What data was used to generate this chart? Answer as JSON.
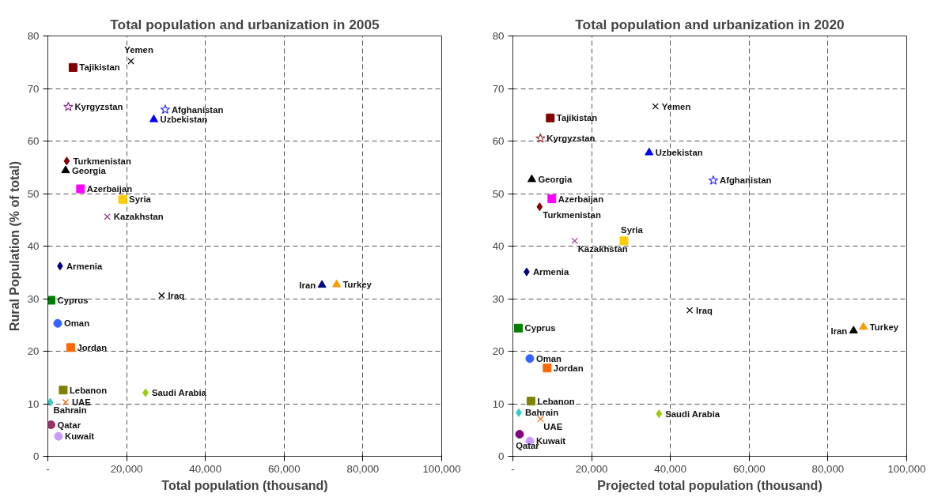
{
  "chart_data": [
    {
      "type": "scatter",
      "title": "Total population and urbanization in 2005",
      "xlabel": "Total population (thousand)",
      "ylabel": "Rural Population (% of total)",
      "xlim": [
        0,
        100000
      ],
      "ylim": [
        0,
        80
      ],
      "xticks": [
        {
          "value": 0,
          "label": "-"
        },
        {
          "value": 20000,
          "label": "20,000"
        },
        {
          "value": 40000,
          "label": "40,000"
        },
        {
          "value": 60000,
          "label": "60,000"
        },
        {
          "value": 80000,
          "label": "80,000"
        },
        {
          "value": 100000,
          "label": "100,000"
        }
      ],
      "yticks": [
        0,
        10,
        20,
        30,
        40,
        50,
        60,
        70,
        80
      ],
      "grid": true,
      "legend": false,
      "series": [
        {
          "name": "Tajikistan",
          "color": "#800000",
          "marker": "square",
          "x": [
            6400
          ],
          "values": [
            74.0
          ]
        },
        {
          "name": "Yemen",
          "color": "#000000",
          "marker": "cross",
          "x": [
            21100
          ],
          "values": [
            75.2
          ]
        },
        {
          "name": "Kyrgyzstan",
          "color": "#993399",
          "marker": "star",
          "x": [
            5200
          ],
          "values": [
            66.5
          ]
        },
        {
          "name": "Afghanistan",
          "color": "#3333ff",
          "marker": "star",
          "x": [
            29800
          ],
          "values": [
            66.0
          ]
        },
        {
          "name": "Uzbekistan",
          "color": "#0000ff",
          "marker": "triangle",
          "x": [
            26900
          ],
          "values": [
            64.1
          ]
        },
        {
          "name": "Turkmenistan",
          "color": "#800000",
          "marker": "diamond",
          "x": [
            4800
          ],
          "values": [
            56.2
          ]
        },
        {
          "name": "Georgia",
          "color": "#000000",
          "marker": "triangle",
          "x": [
            4500
          ],
          "values": [
            54.4
          ]
        },
        {
          "name": "Azerbaijan",
          "color": "#ff00ff",
          "marker": "square",
          "x": [
            8300
          ],
          "values": [
            50.9
          ]
        },
        {
          "name": "Syria",
          "color": "#ffcc00",
          "marker": "square",
          "x": [
            19000
          ],
          "values": [
            48.9
          ]
        },
        {
          "name": "Kazakhstan",
          "color": "#993399",
          "marker": "cross",
          "x": [
            15100
          ],
          "values": [
            45.6
          ]
        },
        {
          "name": "Armenia",
          "color": "#000080",
          "marker": "diamond",
          "x": [
            3100
          ],
          "values": [
            36.2
          ]
        },
        {
          "name": "Cyprus",
          "color": "#008000",
          "marker": "square",
          "x": [
            800
          ],
          "values": [
            29.7
          ]
        },
        {
          "name": "Iraq",
          "color": "#000000",
          "marker": "cross",
          "x": [
            28900
          ],
          "values": [
            30.6
          ]
        },
        {
          "name": "Iran",
          "color": "#000080",
          "marker": "triangle",
          "x": [
            69600
          ],
          "values": [
            32.6
          ]
        },
        {
          "name": "Turkey",
          "color": "#ff9900",
          "marker": "triangle",
          "x": [
            73300
          ],
          "values": [
            32.7
          ]
        },
        {
          "name": "Oman",
          "color": "#3366ff",
          "marker": "circle",
          "x": [
            2500
          ],
          "values": [
            25.3
          ]
        },
        {
          "name": "Jordan",
          "color": "#ff6600",
          "marker": "square",
          "x": [
            5800
          ],
          "values": [
            20.7
          ]
        },
        {
          "name": "Lebanon",
          "color": "#808000",
          "marker": "square",
          "x": [
            3900
          ],
          "values": [
            12.6
          ]
        },
        {
          "name": "Saudi Arabia",
          "color": "#99cc00",
          "marker": "diamond",
          "x": [
            24800
          ],
          "values": [
            12.1
          ]
        },
        {
          "name": "Bahrain",
          "color": "#33cccc",
          "marker": "diamond",
          "x": [
            600
          ],
          "values": [
            10.3
          ]
        },
        {
          "name": "UAE",
          "color": "#ff6600",
          "marker": "cross",
          "x": [
            4500
          ],
          "values": [
            10.3
          ]
        },
        {
          "name": "Qatar",
          "color": "#993366",
          "marker": "circle",
          "x": [
            800
          ],
          "values": [
            6.0
          ]
        },
        {
          "name": "Kuwait",
          "color": "#cc99ff",
          "marker": "circle",
          "x": [
            2700
          ],
          "values": [
            3.8
          ]
        }
      ]
    },
    {
      "type": "scatter",
      "title": "Total population and urbanization in 2020",
      "xlabel": "Projected total population (thousand)",
      "xlim": [
        0,
        100000
      ],
      "ylim": [
        0,
        80
      ],
      "xticks": [
        {
          "value": 0,
          "label": "-"
        },
        {
          "value": 20000,
          "label": "20,000"
        },
        {
          "value": 40000,
          "label": "40,000"
        },
        {
          "value": 60000,
          "label": "60,000"
        },
        {
          "value": 80000,
          "label": "80,000"
        },
        {
          "value": 100000,
          "label": "100,000"
        }
      ],
      "yticks": [
        0,
        10,
        20,
        30,
        40,
        50,
        60,
        70,
        80
      ],
      "grid": true,
      "legend": false,
      "series": [
        {
          "name": "Tajikistan",
          "color": "#800000",
          "marker": "square",
          "x": [
            9500
          ],
          "values": [
            64.4
          ]
        },
        {
          "name": "Yemen",
          "color": "#000000",
          "marker": "cross",
          "x": [
            36200
          ],
          "values": [
            66.6
          ]
        },
        {
          "name": "Kyrgyzstan",
          "color": "#993333",
          "marker": "star",
          "x": [
            7000
          ],
          "values": [
            60.5
          ]
        },
        {
          "name": "Uzbekistan",
          "color": "#0000ff",
          "marker": "triangle",
          "x": [
            34600
          ],
          "values": [
            57.8
          ]
        },
        {
          "name": "Georgia",
          "color": "#000000",
          "marker": "triangle",
          "x": [
            4800
          ],
          "values": [
            52.7
          ]
        },
        {
          "name": "Afghanistan",
          "color": "#3333ff",
          "marker": "star",
          "x": [
            50900
          ],
          "values": [
            52.5
          ]
        },
        {
          "name": "Azerbaijan",
          "color": "#ff00ff",
          "marker": "square",
          "x": [
            9900
          ],
          "values": [
            49.0
          ]
        },
        {
          "name": "Turkmenistan",
          "color": "#800000",
          "marker": "diamond",
          "x": [
            6800
          ],
          "values": [
            47.5
          ]
        },
        {
          "name": "Kazakhstan",
          "color": "#993399",
          "marker": "cross",
          "x": [
            15700
          ],
          "values": [
            41.0
          ]
        },
        {
          "name": "Syria",
          "color": "#ffcc00",
          "marker": "square",
          "x": [
            28200
          ],
          "values": [
            41.0
          ]
        },
        {
          "name": "Armenia",
          "color": "#000080",
          "marker": "diamond",
          "x": [
            3500
          ],
          "values": [
            35.1
          ]
        },
        {
          "name": "Iraq",
          "color": "#000000",
          "marker": "cross",
          "x": [
            44900
          ],
          "values": [
            27.8
          ]
        },
        {
          "name": "Iran",
          "color": "#000000",
          "marker": "triangle",
          "x": [
            86500
          ],
          "values": [
            23.9
          ]
        },
        {
          "name": "Turkey",
          "color": "#ff9900",
          "marker": "triangle",
          "x": [
            89000
          ],
          "values": [
            24.6
          ]
        },
        {
          "name": "Cyprus",
          "color": "#008000",
          "marker": "square",
          "x": [
            1400
          ],
          "values": [
            24.4
          ]
        },
        {
          "name": "Oman",
          "color": "#3366ff",
          "marker": "circle",
          "x": [
            4300
          ],
          "values": [
            18.6
          ]
        },
        {
          "name": "Jordan",
          "color": "#ff6600",
          "marker": "square",
          "x": [
            8700
          ],
          "values": [
            16.8
          ]
        },
        {
          "name": "Lebanon",
          "color": "#808000",
          "marker": "square",
          "x": [
            4600
          ],
          "values": [
            10.5
          ]
        },
        {
          "name": "Bahrain",
          "color": "#33cccc",
          "marker": "diamond",
          "x": [
            1500
          ],
          "values": [
            8.3
          ]
        },
        {
          "name": "UAE",
          "color": "#ff6600",
          "marker": "cross",
          "x": [
            7000
          ],
          "values": [
            7.1
          ]
        },
        {
          "name": "Saudi Arabia",
          "color": "#99cc00",
          "marker": "diamond",
          "x": [
            37100
          ],
          "values": [
            8.1
          ]
        },
        {
          "name": "Qatar",
          "color": "#800080",
          "marker": "circle",
          "x": [
            1700
          ],
          "values": [
            4.2
          ]
        },
        {
          "name": "Kuwait",
          "color": "#cc99ff",
          "marker": "circle",
          "x": [
            4300
          ],
          "values": [
            2.9
          ]
        }
      ]
    }
  ]
}
